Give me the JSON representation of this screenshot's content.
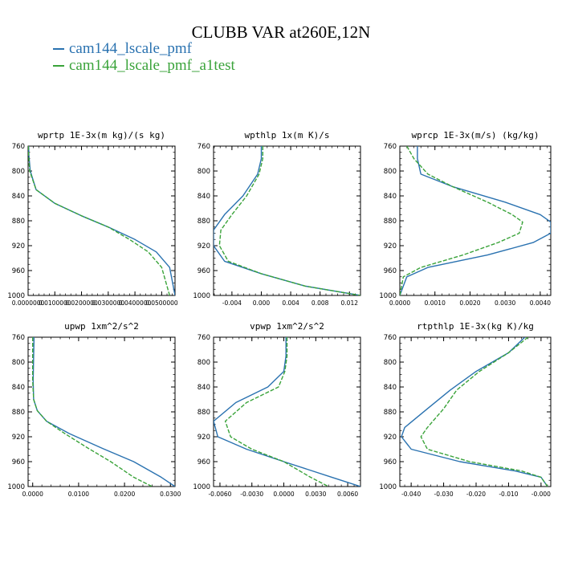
{
  "header": {
    "title": "CLUBB VAR at260E,12N"
  },
  "colors": {
    "series_1": "#2a72b0",
    "series_2": "#3aa33a"
  },
  "legend": {
    "items": [
      {
        "label": "cam144_lscale_pmf",
        "color": "#2a72b0"
      },
      {
        "label": "cam144_lscale_pmf_a1test",
        "color": "#3aa33a"
      }
    ]
  },
  "chart_data": [
    {
      "type": "line",
      "title": "wprtp  1E-3x(m kg)/(s kg)",
      "xlim": [
        0,
        0.055
      ],
      "ylim": [
        760,
        1000
      ],
      "y_inverted": true,
      "xticks": [
        0,
        0.01,
        0.02,
        0.03,
        0.04,
        0.05
      ],
      "xtick_labels": [
        "0.0000000",
        "0.0100000",
        "0.0200000",
        "0.0300000",
        "0.0400000",
        "0.0500000"
      ],
      "yticks": [
        760,
        800,
        840,
        880,
        920,
        960,
        1000
      ],
      "ytick_labels": [
        "760",
        "800",
        "840",
        "880",
        "920",
        "960",
        "1000"
      ],
      "series": [
        {
          "name": "cam144_lscale_pmf",
          "color": "#2a72b0",
          "dash": "",
          "x": [
            0.0002,
            0.0003,
            0.0008,
            0.003,
            0.01,
            0.02,
            0.03,
            0.04,
            0.048,
            0.053,
            0.055
          ],
          "y": [
            760,
            775,
            800,
            830,
            852,
            872,
            890,
            910,
            930,
            955,
            1000
          ]
        },
        {
          "name": "cam144_lscale_pmf_a1test",
          "color": "#3aa33a",
          "dash": "5,2",
          "x": [
            0.0001,
            0.0002,
            0.0006,
            0.003,
            0.01,
            0.02,
            0.03,
            0.038,
            0.045,
            0.05,
            0.053
          ],
          "y": [
            760,
            775,
            800,
            830,
            852,
            872,
            890,
            910,
            930,
            955,
            1000
          ]
        }
      ]
    },
    {
      "type": "line",
      "title": "wpthlp  1x(m K)/s",
      "xlim": [
        -0.0065,
        0.0135
      ],
      "ylim": [
        760,
        1000
      ],
      "y_inverted": true,
      "xticks": [
        -0.004,
        0.0,
        0.004,
        0.008,
        0.012
      ],
      "xtick_labels": [
        "-0.004",
        "0.000",
        "0.004",
        "0.008",
        "0.012"
      ],
      "yticks": [
        760,
        800,
        840,
        880,
        920,
        960,
        1000
      ],
      "ytick_labels": [
        "760",
        "800",
        "840",
        "880",
        "920",
        "960",
        "1000"
      ],
      "series": [
        {
          "name": "cam144_lscale_pmf",
          "color": "#2a72b0",
          "dash": "",
          "x": [
            0.0,
            0.0,
            -0.0005,
            -0.0025,
            -0.005,
            -0.0065,
            -0.0065,
            -0.005,
            0.0,
            0.006,
            0.0135
          ],
          "y": [
            760,
            780,
            805,
            840,
            870,
            895,
            920,
            945,
            965,
            985,
            1000
          ]
        },
        {
          "name": "cam144_lscale_pmf_a1test",
          "color": "#3aa33a",
          "dash": "5,2",
          "x": [
            0.0002,
            0.0002,
            -0.0003,
            -0.002,
            -0.004,
            -0.0055,
            -0.0057,
            -0.0045,
            0.0,
            0.006,
            0.0135
          ],
          "y": [
            760,
            780,
            805,
            840,
            870,
            895,
            920,
            945,
            965,
            985,
            1000
          ]
        }
      ]
    },
    {
      "type": "line",
      "title": "wprcp  1E-3x(m/s) (kg/kg)",
      "xlim": [
        0,
        0.0043
      ],
      "ylim": [
        760,
        1000
      ],
      "y_inverted": true,
      "xticks": [
        0.0,
        0.001,
        0.002,
        0.003,
        0.004
      ],
      "xtick_labels": [
        "0.0000",
        "0.0010",
        "0.0020",
        "0.0030",
        "0.0040"
      ],
      "yticks": [
        760,
        800,
        840,
        880,
        920,
        960,
        1000
      ],
      "ytick_labels": [
        "760",
        "800",
        "840",
        "880",
        "920",
        "960",
        "1000"
      ],
      "series": [
        {
          "name": "cam144_lscale_pmf",
          "color": "#2a72b0",
          "dash": "",
          "x": [
            0.0005,
            0.0005,
            0.0006,
            0.0015,
            0.003,
            0.004,
            0.0043,
            0.0043,
            0.0038,
            0.0025,
            0.0008,
            0.0002,
            0.0
          ],
          "y": [
            760,
            780,
            805,
            825,
            850,
            870,
            882,
            900,
            915,
            935,
            955,
            970,
            1000
          ]
        },
        {
          "name": "cam144_lscale_pmf_a1test",
          "color": "#3aa33a",
          "dash": "5,2",
          "x": [
            0.0002,
            0.0004,
            0.0008,
            0.0015,
            0.0025,
            0.0032,
            0.0035,
            0.0034,
            0.0028,
            0.0018,
            0.0006,
            0.0001,
            0.0
          ],
          "y": [
            760,
            780,
            805,
            825,
            850,
            870,
            882,
            900,
            915,
            935,
            955,
            970,
            1000
          ]
        }
      ]
    },
    {
      "type": "line",
      "title": "upwp  1xm^2/s^2",
      "xlim": [
        -0.001,
        0.031
      ],
      "ylim": [
        760,
        1000
      ],
      "y_inverted": true,
      "xticks": [
        0.0,
        0.01,
        0.02,
        0.03
      ],
      "xtick_labels": [
        "0.0000",
        "0.0100",
        "0.0200",
        "0.0300"
      ],
      "yticks": [
        760,
        800,
        840,
        880,
        920,
        960,
        1000
      ],
      "ytick_labels": [
        "760",
        "800",
        "840",
        "880",
        "920",
        "960",
        "1000"
      ],
      "series": [
        {
          "name": "cam144_lscale_pmf",
          "color": "#2a72b0",
          "dash": "",
          "x": [
            0.0003,
            0.0002,
            0.0001,
            0.0002,
            0.001,
            0.003,
            0.008,
            0.015,
            0.022,
            0.028,
            0.031
          ],
          "y": [
            760,
            790,
            830,
            860,
            878,
            895,
            915,
            938,
            960,
            985,
            1000
          ]
        },
        {
          "name": "cam144_lscale_pmf_a1test",
          "color": "#3aa33a",
          "dash": "5,2",
          "x": [
            0.0,
            0.0,
            0.0,
            0.0002,
            0.001,
            0.003,
            0.007,
            0.012,
            0.017,
            0.022,
            0.026
          ],
          "y": [
            760,
            790,
            830,
            860,
            878,
            895,
            915,
            938,
            960,
            985,
            1000
          ]
        }
      ]
    },
    {
      "type": "line",
      "title": "vpwp  1xm^2/s^2",
      "xlim": [
        -0.0066,
        0.0072
      ],
      "ylim": [
        760,
        1000
      ],
      "y_inverted": true,
      "xticks": [
        -0.006,
        -0.003,
        0.0,
        0.003,
        0.006
      ],
      "xtick_labels": [
        "-0.0060",
        "-0.0030",
        "0.0000",
        "0.0030",
        "0.0060"
      ],
      "yticks": [
        760,
        800,
        840,
        880,
        920,
        960,
        1000
      ],
      "ytick_labels": [
        "760",
        "800",
        "840",
        "880",
        "920",
        "960",
        "1000"
      ],
      "series": [
        {
          "name": "cam144_lscale_pmf",
          "color": "#2a72b0",
          "dash": "",
          "x": [
            0.0002,
            0.0002,
            0.0,
            -0.0015,
            -0.0045,
            -0.0066,
            -0.0062,
            -0.0035,
            0.0,
            0.0045,
            0.0072
          ],
          "y": [
            760,
            790,
            815,
            840,
            865,
            895,
            920,
            940,
            960,
            985,
            1000
          ]
        },
        {
          "name": "cam144_lscale_pmf_a1test",
          "color": "#3aa33a",
          "dash": "5,2",
          "x": [
            0.0003,
            0.0003,
            0.0001,
            -0.0005,
            -0.0035,
            -0.0055,
            -0.005,
            -0.003,
            0.0,
            0.0025,
            0.0042
          ],
          "y": [
            760,
            790,
            815,
            840,
            865,
            895,
            920,
            940,
            960,
            985,
            1000
          ]
        }
      ]
    },
    {
      "type": "line",
      "title": "rtpthlp  1E-3x(kg K)/kg",
      "xlim": [
        -0.0435,
        0.003
      ],
      "ylim": [
        760,
        1000
      ],
      "y_inverted": true,
      "xticks": [
        -0.04,
        -0.03,
        -0.02,
        -0.01,
        0.0
      ],
      "xtick_labels": [
        "-0.040",
        "-0.030",
        "-0.020",
        "-0.010",
        "-0.000"
      ],
      "yticks": [
        760,
        800,
        840,
        880,
        920,
        960,
        1000
      ],
      "ytick_labels": [
        "760",
        "800",
        "840",
        "880",
        "920",
        "960",
        "1000"
      ],
      "series": [
        {
          "name": "cam144_lscale_pmf",
          "color": "#2a72b0",
          "dash": "",
          "x": [
            -0.005,
            -0.01,
            -0.02,
            -0.028,
            -0.035,
            -0.042,
            -0.043,
            -0.04,
            -0.025,
            -0.008,
            0.0,
            0.002
          ],
          "y": [
            760,
            785,
            815,
            845,
            875,
            905,
            920,
            940,
            960,
            975,
            985,
            1000
          ]
        },
        {
          "name": "cam144_lscale_pmf_a1test",
          "color": "#3aa33a",
          "dash": "5,2",
          "x": [
            -0.004,
            -0.01,
            -0.019,
            -0.026,
            -0.03,
            -0.035,
            -0.037,
            -0.035,
            -0.022,
            -0.006,
            0.0,
            0.002
          ],
          "y": [
            760,
            785,
            815,
            845,
            875,
            905,
            920,
            940,
            960,
            975,
            985,
            1000
          ]
        }
      ]
    }
  ]
}
